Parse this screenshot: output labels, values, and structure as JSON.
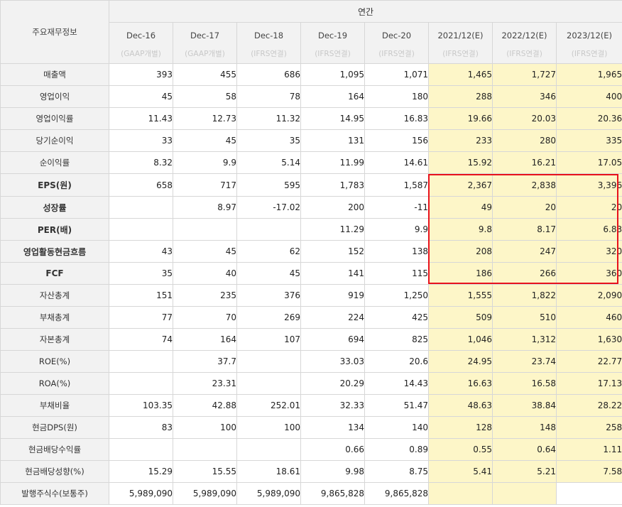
{
  "header": {
    "corner": "주요재무정보",
    "group_label": "연간",
    "periods": [
      {
        "label": "Dec-16",
        "basis": "(GAAP개별)"
      },
      {
        "label": "Dec-17",
        "basis": "(GAAP개별)"
      },
      {
        "label": "Dec-18",
        "basis": "(IFRS연결)"
      },
      {
        "label": "Dec-19",
        "basis": "(IFRS연결)"
      },
      {
        "label": "Dec-20",
        "basis": "(IFRS연결)"
      },
      {
        "label": "2021/12(E)",
        "basis": "(IFRS연결)"
      },
      {
        "label": "2022/12(E)",
        "basis": "(IFRS연결)"
      },
      {
        "label": "2023/12(E)",
        "basis": "(IFRS연결)"
      }
    ]
  },
  "rows": [
    {
      "label": "매출액",
      "values": [
        "393",
        "455",
        "686",
        "1,095",
        "1,071",
        "1,465",
        "1,727",
        "1,965"
      ]
    },
    {
      "label": "영업이익",
      "values": [
        "45",
        "58",
        "78",
        "164",
        "180",
        "288",
        "346",
        "400"
      ]
    },
    {
      "label": "영업이익률",
      "values": [
        "11.43",
        "12.73",
        "11.32",
        "14.95",
        "16.83",
        "19.66",
        "20.03",
        "20.36"
      ]
    },
    {
      "label": "당기순이익",
      "values": [
        "33",
        "45",
        "35",
        "131",
        "156",
        "233",
        "280",
        "335"
      ]
    },
    {
      "label": "순이익률",
      "values": [
        "8.32",
        "9.9",
        "5.14",
        "11.99",
        "14.61",
        "15.92",
        "16.21",
        "17.05"
      ]
    },
    {
      "label": "EPS(원)",
      "values": [
        "658",
        "717",
        "595",
        "1,783",
        "1,587",
        "2,367",
        "2,838",
        "3,396"
      ]
    },
    {
      "label": "성장률",
      "values": [
        "",
        "8.97",
        "-17.02",
        "200",
        "-11",
        "49",
        "20",
        "20"
      ]
    },
    {
      "label": "PER(배)",
      "values": [
        "",
        "",
        "",
        "11.29",
        "9.9",
        "9.8",
        "8.17",
        "6.83"
      ]
    },
    {
      "label": "영업활동현금흐름",
      "values": [
        "43",
        "45",
        "62",
        "152",
        "138",
        "208",
        "247",
        "320"
      ]
    },
    {
      "label": "FCF",
      "values": [
        "35",
        "40",
        "45",
        "141",
        "115",
        "186",
        "266",
        "360"
      ]
    },
    {
      "label": "자산총계",
      "values": [
        "151",
        "235",
        "376",
        "919",
        "1,250",
        "1,555",
        "1,822",
        "2,090"
      ]
    },
    {
      "label": "부채총계",
      "values": [
        "77",
        "70",
        "269",
        "224",
        "425",
        "509",
        "510",
        "460"
      ]
    },
    {
      "label": "자본총계",
      "values": [
        "74",
        "164",
        "107",
        "694",
        "825",
        "1,046",
        "1,312",
        "1,630"
      ]
    },
    {
      "label": "ROE(%)",
      "values": [
        "",
        "37.7",
        "",
        "33.03",
        "20.6",
        "24.95",
        "23.74",
        "22.77"
      ]
    },
    {
      "label": "ROA(%)",
      "values": [
        "",
        "23.31",
        "",
        "20.29",
        "14.43",
        "16.63",
        "16.58",
        "17.13"
      ]
    },
    {
      "label": "부채비율",
      "values": [
        "103.35",
        "42.88",
        "252.01",
        "32.33",
        "51.47",
        "48.63",
        "38.84",
        "28.22"
      ]
    },
    {
      "label": "현금DPS(원)",
      "values": [
        "83",
        "100",
        "100",
        "134",
        "140",
        "128",
        "148",
        "258"
      ]
    },
    {
      "label": "현금배당수익률",
      "values": [
        "",
        "",
        "",
        "0.66",
        "0.89",
        "0.55",
        "0.64",
        "1.11"
      ]
    },
    {
      "label": "현금배당성향(%)",
      "values": [
        "15.29",
        "15.55",
        "18.61",
        "9.98",
        "8.75",
        "5.41",
        "5.21",
        "7.58"
      ]
    },
    {
      "label": "발행주식수(보통주)",
      "values": [
        "5,989,090",
        "5,989,090",
        "5,989,090",
        "9,865,828",
        "9,865,828",
        "",
        "",
        ""
      ]
    }
  ],
  "highlight": {
    "color": "#e8121c",
    "estimate_fill": "#fdf6c8"
  }
}
